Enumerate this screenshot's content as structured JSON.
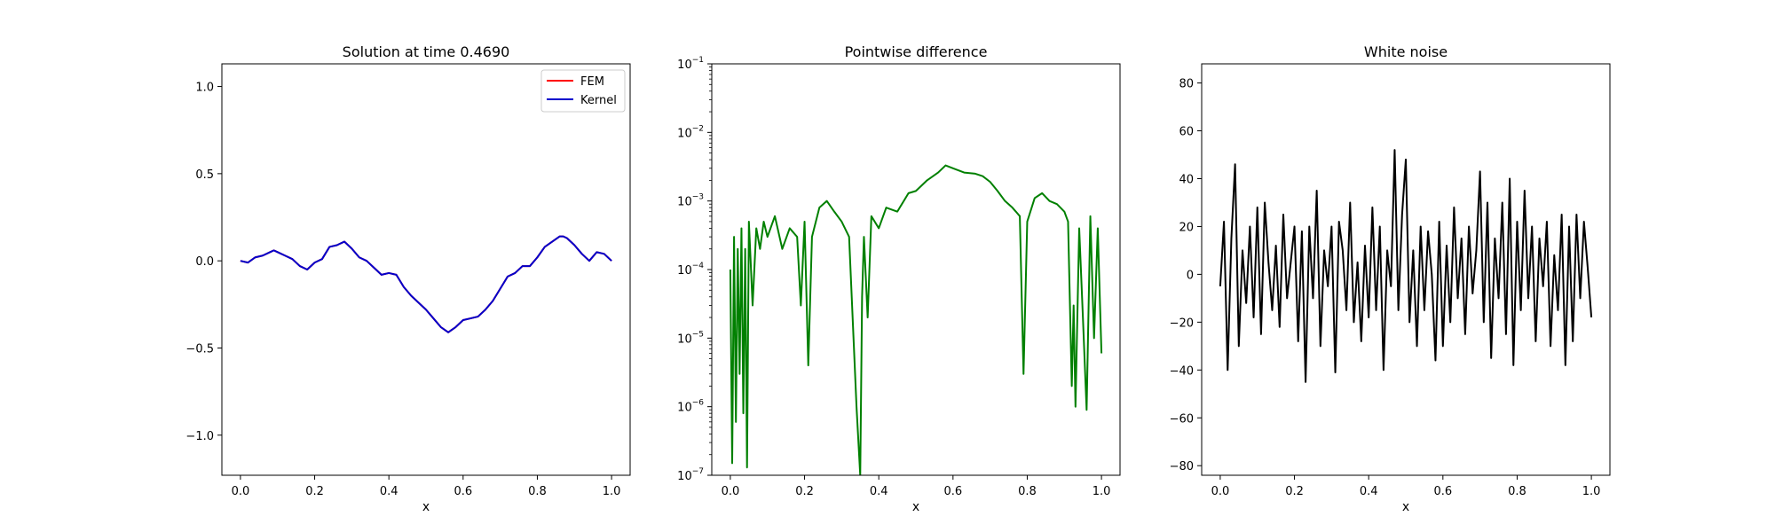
{
  "figure": {
    "panels": [
      {
        "title": "Solution at time 0.4690",
        "xlabel": "x",
        "ylabel": "",
        "legend": {
          "placement": "top-right",
          "entries": [
            "FEM",
            "Kernel"
          ]
        }
      },
      {
        "title": "Pointwise difference",
        "xlabel": "x",
        "ylabel": ""
      },
      {
        "title": "White noise",
        "xlabel": "x",
        "ylabel": ""
      }
    ]
  },
  "chart_data": [
    {
      "type": "line",
      "title": "Solution at time 0.4690",
      "xlabel": "x",
      "ylabel": "",
      "xlim": [
        -0.05,
        1.05
      ],
      "ylim": [
        -1.23,
        1.13
      ],
      "xticks": [
        "0.0",
        "0.2",
        "0.4",
        "0.6",
        "0.8",
        "1.0"
      ],
      "yticks": [
        "−1.0",
        "−0.5",
        "0.0",
        "0.5",
        "1.0"
      ],
      "grid": false,
      "legend": "top-right",
      "colors": {
        "FEM": "#ff0000",
        "Kernel": "#0000cc"
      },
      "x": [
        0.0,
        0.02,
        0.04,
        0.06,
        0.08,
        0.09,
        0.1,
        0.12,
        0.14,
        0.16,
        0.18,
        0.2,
        0.22,
        0.24,
        0.26,
        0.28,
        0.3,
        0.32,
        0.34,
        0.36,
        0.38,
        0.4,
        0.42,
        0.44,
        0.46,
        0.48,
        0.5,
        0.52,
        0.54,
        0.56,
        0.58,
        0.6,
        0.62,
        0.64,
        0.66,
        0.68,
        0.7,
        0.72,
        0.74,
        0.76,
        0.78,
        0.8,
        0.82,
        0.84,
        0.86,
        0.87,
        0.88,
        0.9,
        0.92,
        0.94,
        0.96,
        0.98,
        1.0
      ],
      "series": [
        {
          "name": "FEM",
          "values": [
            0.0,
            -0.01,
            0.02,
            0.03,
            0.05,
            0.06,
            0.05,
            0.03,
            0.01,
            -0.03,
            -0.05,
            -0.01,
            0.01,
            0.08,
            0.09,
            0.11,
            0.07,
            0.02,
            0.0,
            -0.04,
            -0.08,
            -0.07,
            -0.08,
            -0.15,
            -0.2,
            -0.24,
            -0.28,
            -0.33,
            -0.38,
            -0.41,
            -0.38,
            -0.34,
            -0.33,
            -0.32,
            -0.28,
            -0.23,
            -0.16,
            -0.09,
            -0.07,
            -0.03,
            -0.03,
            0.02,
            0.08,
            0.11,
            0.14,
            0.14,
            0.13,
            0.09,
            0.04,
            0.0,
            0.05,
            0.04,
            0.0
          ]
        },
        {
          "name": "Kernel",
          "values": [
            0.0,
            -0.01,
            0.02,
            0.03,
            0.05,
            0.06,
            0.05,
            0.03,
            0.01,
            -0.03,
            -0.05,
            -0.01,
            0.01,
            0.08,
            0.09,
            0.11,
            0.07,
            0.02,
            0.0,
            -0.04,
            -0.08,
            -0.07,
            -0.08,
            -0.15,
            -0.2,
            -0.24,
            -0.28,
            -0.33,
            -0.38,
            -0.41,
            -0.38,
            -0.34,
            -0.33,
            -0.32,
            -0.28,
            -0.23,
            -0.16,
            -0.09,
            -0.07,
            -0.03,
            -0.03,
            0.02,
            0.08,
            0.11,
            0.14,
            0.14,
            0.13,
            0.09,
            0.04,
            0.0,
            0.05,
            0.04,
            0.0
          ]
        }
      ]
    },
    {
      "type": "line",
      "title": "Pointwise difference",
      "xlabel": "x",
      "ylabel": "",
      "yscale": "log",
      "xlim": [
        -0.05,
        1.05
      ],
      "ylim": [
        1e-07,
        0.1
      ],
      "xticks": [
        "0.0",
        "0.2",
        "0.4",
        "0.6",
        "0.8",
        "1.0"
      ],
      "yticks": [
        {
          "mant": "10",
          "exp": "−7"
        },
        {
          "mant": "10",
          "exp": "−6"
        },
        {
          "mant": "10",
          "exp": "−5"
        },
        {
          "mant": "10",
          "exp": "−4"
        },
        {
          "mant": "10",
          "exp": "−3"
        },
        {
          "mant": "10",
          "exp": "−2"
        },
        {
          "mant": "10",
          "exp": "−1"
        }
      ],
      "grid": false,
      "color": "#008000",
      "x": [
        0.0,
        0.005,
        0.01,
        0.015,
        0.02,
        0.025,
        0.03,
        0.035,
        0.04,
        0.045,
        0.05,
        0.06,
        0.07,
        0.08,
        0.09,
        0.1,
        0.12,
        0.14,
        0.16,
        0.18,
        0.19,
        0.2,
        0.21,
        0.22,
        0.24,
        0.26,
        0.28,
        0.3,
        0.32,
        0.34,
        0.35,
        0.355,
        0.36,
        0.37,
        0.38,
        0.4,
        0.42,
        0.45,
        0.48,
        0.5,
        0.53,
        0.56,
        0.58,
        0.6,
        0.63,
        0.66,
        0.68,
        0.7,
        0.72,
        0.74,
        0.76,
        0.78,
        0.79,
        0.8,
        0.82,
        0.84,
        0.86,
        0.88,
        0.9,
        0.91,
        0.92,
        0.925,
        0.93,
        0.94,
        0.95,
        0.96,
        0.97,
        0.98,
        0.99,
        1.0
      ],
      "values": [
        0.0001,
        1.5e-07,
        0.0003,
        6e-07,
        0.0002,
        3e-06,
        0.0004,
        8e-07,
        0.0002,
        1.3e-07,
        0.0005,
        3e-05,
        0.0004,
        0.0002,
        0.0005,
        0.0003,
        0.0006,
        0.0002,
        0.0004,
        0.0003,
        3e-05,
        0.0005,
        4e-06,
        0.0003,
        0.0008,
        0.001,
        0.0007,
        0.0005,
        0.0003,
        1e-06,
        1e-07,
        4e-05,
        0.0003,
        2e-05,
        0.0006,
        0.0004,
        0.0008,
        0.0007,
        0.0013,
        0.0014,
        0.002,
        0.0026,
        0.0033,
        0.003,
        0.0026,
        0.0025,
        0.0023,
        0.0019,
        0.0014,
        0.001,
        0.0008,
        0.0006,
        3e-06,
        0.0005,
        0.0011,
        0.0013,
        0.001,
        0.0009,
        0.0007,
        0.0005,
        2e-06,
        3e-05,
        1e-06,
        0.0004,
        2e-05,
        9e-07,
        0.0006,
        1e-05,
        0.0004,
        6e-06
      ]
    },
    {
      "type": "line",
      "title": "White noise",
      "xlabel": "x",
      "ylabel": "",
      "xlim": [
        -0.05,
        1.05
      ],
      "ylim": [
        -84,
        88
      ],
      "xticks": [
        "0.0",
        "0.2",
        "0.4",
        "0.6",
        "0.8",
        "1.0"
      ],
      "yticks": [
        "−80",
        "−60",
        "−40",
        "−20",
        "0",
        "20",
        "40",
        "60",
        "80"
      ],
      "grid": false,
      "color": "#000000",
      "x": [
        0.0,
        0.01,
        0.02,
        0.03,
        0.04,
        0.05,
        0.06,
        0.07,
        0.08,
        0.09,
        0.1,
        0.11,
        0.12,
        0.13,
        0.14,
        0.15,
        0.16,
        0.17,
        0.18,
        0.19,
        0.2,
        0.21,
        0.22,
        0.23,
        0.24,
        0.25,
        0.26,
        0.27,
        0.28,
        0.29,
        0.3,
        0.31,
        0.32,
        0.33,
        0.34,
        0.35,
        0.36,
        0.37,
        0.38,
        0.39,
        0.4,
        0.41,
        0.42,
        0.43,
        0.44,
        0.45,
        0.46,
        0.47,
        0.48,
        0.49,
        0.5,
        0.51,
        0.52,
        0.53,
        0.54,
        0.55,
        0.56,
        0.57,
        0.58,
        0.59,
        0.6,
        0.61,
        0.62,
        0.63,
        0.64,
        0.65,
        0.66,
        0.67,
        0.68,
        0.69,
        0.7,
        0.71,
        0.72,
        0.73,
        0.74,
        0.75,
        0.76,
        0.77,
        0.78,
        0.79,
        0.8,
        0.81,
        0.82,
        0.83,
        0.84,
        0.85,
        0.86,
        0.87,
        0.88,
        0.89,
        0.9,
        0.91,
        0.92,
        0.93,
        0.94,
        0.95,
        0.96,
        0.97,
        0.98,
        0.99,
        1.0
      ],
      "values": [
        -5,
        22,
        -40,
        15,
        46,
        -30,
        10,
        -12,
        20,
        -18,
        28,
        -25,
        30,
        5,
        -15,
        12,
        -22,
        25,
        -10,
        5,
        20,
        -28,
        18,
        -45,
        20,
        -10,
        35,
        -30,
        10,
        -5,
        20,
        -41,
        22,
        10,
        -15,
        30,
        -20,
        5,
        -28,
        12,
        -18,
        28,
        -15,
        20,
        -40,
        10,
        -5,
        52,
        -15,
        25,
        48,
        -20,
        10,
        -30,
        20,
        -15,
        18,
        0,
        -36,
        22,
        -30,
        12,
        -20,
        28,
        -10,
        15,
        -25,
        20,
        -8,
        10,
        43,
        -20,
        30,
        -35,
        15,
        -10,
        30,
        -25,
        40,
        -38,
        22,
        -15,
        35,
        -10,
        20,
        -28,
        15,
        -5,
        22,
        -30,
        8,
        -15,
        25,
        -38,
        20,
        -28,
        25,
        -10,
        22,
        3,
        -18
      ]
    }
  ]
}
